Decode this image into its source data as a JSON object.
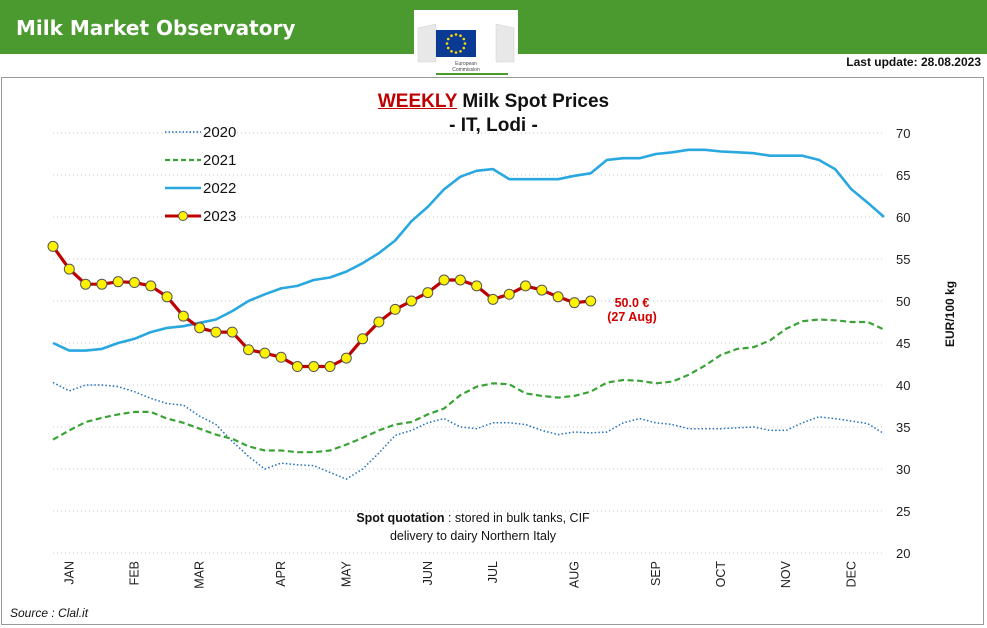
{
  "header": {
    "title": "Milk Market Observatory",
    "logo_text_1": "European",
    "logo_text_2": "Commission",
    "last_update": "Last update: 28.08.2023"
  },
  "chart_data": {
    "type": "line",
    "title_highlight": "WEEKLY",
    "title_rest": " Milk Spot Prices",
    "subtitle": "- IT, Lodi -",
    "ylabel": "EUR/100 kg",
    "ylim": [
      20,
      70
    ],
    "yticks": [
      20,
      25,
      30,
      35,
      40,
      45,
      50,
      55,
      60,
      65,
      70
    ],
    "grid": "horizontal-dotted",
    "legend_position": "top-left",
    "x_unit": "week of year",
    "x_range": [
      1,
      52
    ],
    "month_ticks": [
      {
        "label": "JAN",
        "week": 2
      },
      {
        "label": "FEB",
        "week": 6
      },
      {
        "label": "MAR",
        "week": 10
      },
      {
        "label": "APR",
        "week": 15
      },
      {
        "label": "MAY",
        "week": 19
      },
      {
        "label": "JUN",
        "week": 24
      },
      {
        "label": "JUL",
        "week": 28
      },
      {
        "label": "AUG",
        "week": 33
      },
      {
        "label": "SEP",
        "week": 38
      },
      {
        "label": "OCT",
        "week": 42
      },
      {
        "label": "NOV",
        "week": 46
      },
      {
        "label": "DEC",
        "week": 50
      }
    ],
    "series": [
      {
        "name": "2020",
        "color": "#1f6fbf",
        "style": "dotted",
        "x": [
          1,
          2,
          3,
          4,
          5,
          6,
          7,
          8,
          9,
          10,
          11,
          12,
          13,
          14,
          15,
          16,
          17,
          18,
          19,
          20,
          21,
          22,
          23,
          24,
          25,
          26,
          27,
          28,
          29,
          30,
          31,
          32,
          33,
          34,
          35,
          36,
          37,
          38,
          39,
          40,
          41,
          42,
          43,
          44,
          45,
          46,
          47,
          48,
          49,
          50,
          51,
          52
        ],
        "values": [
          40.3,
          39.3,
          40.0,
          40.0,
          39.8,
          39.2,
          38.4,
          37.8,
          37.6,
          36.3,
          35.3,
          33.3,
          31.5,
          30.0,
          30.7,
          30.5,
          30.4,
          29.6,
          28.8,
          30.0,
          31.9,
          34.0,
          34.6,
          35.5,
          36.0,
          35.0,
          34.8,
          35.5,
          35.5,
          35.3,
          34.6,
          34.1,
          34.4,
          34.3,
          34.4,
          35.5,
          36.0,
          35.5,
          35.3,
          34.8,
          34.8,
          34.8,
          34.9,
          35.0,
          34.6,
          34.6,
          35.5,
          36.2,
          36.0,
          35.7,
          35.4,
          34.2
        ]
      },
      {
        "name": "2021",
        "color": "#3aa335",
        "style": "dashed",
        "x": [
          1,
          2,
          3,
          4,
          5,
          6,
          7,
          8,
          9,
          10,
          11,
          12,
          13,
          14,
          15,
          16,
          17,
          18,
          19,
          20,
          21,
          22,
          23,
          24,
          25,
          26,
          27,
          28,
          29,
          30,
          31,
          32,
          33,
          34,
          35,
          36,
          37,
          38,
          39,
          40,
          41,
          42,
          43,
          44,
          45,
          46,
          47,
          48,
          49,
          50,
          51,
          52
        ],
        "values": [
          33.5,
          34.6,
          35.6,
          36.1,
          36.5,
          36.8,
          36.8,
          36.0,
          35.5,
          34.8,
          34.1,
          33.6,
          32.7,
          32.2,
          32.2,
          32.0,
          32.0,
          32.2,
          32.9,
          33.7,
          34.6,
          35.3,
          35.6,
          36.5,
          37.2,
          38.8,
          39.8,
          40.2,
          40.1,
          39.0,
          38.7,
          38.5,
          38.7,
          39.2,
          40.3,
          40.6,
          40.5,
          40.2,
          40.4,
          41.2,
          42.3,
          43.6,
          44.3,
          44.5,
          45.3,
          46.7,
          47.6,
          47.8,
          47.7,
          47.5,
          47.5,
          46.6
        ]
      },
      {
        "name": "2022",
        "color": "#29a8e0",
        "style": "solid",
        "x": [
          1,
          2,
          3,
          4,
          5,
          6,
          7,
          8,
          9,
          10,
          11,
          12,
          13,
          14,
          15,
          16,
          17,
          18,
          19,
          20,
          21,
          22,
          23,
          24,
          25,
          26,
          27,
          28,
          29,
          30,
          31,
          32,
          33,
          34,
          35,
          36,
          37,
          38,
          39,
          40,
          41,
          42,
          43,
          44,
          45,
          46,
          47,
          48,
          49,
          50,
          51,
          52
        ],
        "values": [
          45.0,
          44.1,
          44.1,
          44.3,
          45.0,
          45.5,
          46.3,
          46.8,
          47.0,
          47.4,
          47.8,
          48.8,
          50.0,
          50.8,
          51.5,
          51.8,
          52.5,
          52.8,
          53.5,
          54.5,
          55.7,
          57.2,
          59.5,
          61.2,
          63.3,
          64.8,
          65.5,
          65.7,
          64.5,
          64.5,
          64.5,
          64.5,
          64.9,
          65.2,
          66.8,
          67.0,
          67.0,
          67.5,
          67.7,
          68.0,
          68.0,
          67.8,
          67.7,
          67.6,
          67.3,
          67.3,
          67.3,
          66.8,
          65.7,
          63.3,
          61.7,
          60.0
        ]
      },
      {
        "name": "2023",
        "color": "#c00000",
        "style": "solid-markers",
        "marker_color": "#fff200",
        "x": [
          1,
          2,
          3,
          4,
          5,
          6,
          7,
          8,
          9,
          10,
          11,
          12,
          13,
          14,
          15,
          16,
          17,
          18,
          19,
          20,
          21,
          22,
          23,
          24,
          25,
          26,
          27,
          28,
          29,
          30,
          31,
          32,
          33,
          34
        ],
        "values": [
          56.5,
          53.8,
          52.0,
          52.0,
          52.3,
          52.2,
          51.8,
          50.5,
          48.2,
          46.8,
          46.3,
          46.3,
          44.2,
          43.8,
          43.3,
          42.2,
          42.2,
          42.2,
          43.2,
          45.5,
          47.5,
          49.0,
          50.0,
          51.0,
          52.5,
          52.5,
          51.8,
          50.2,
          50.8,
          51.8,
          51.3,
          50.5,
          49.8,
          50.0
        ]
      }
    ],
    "annotation": {
      "line1": "50.0 €",
      "line2": "(27 Aug)",
      "series": "2023",
      "x": 34,
      "y": 50.0
    },
    "note": {
      "bold": "Spot quotation",
      "text1": " : stored in bulk tanks, CIF",
      "text2": "delivery to dairy Northern Italy"
    },
    "source": "Source : Clal.it"
  }
}
